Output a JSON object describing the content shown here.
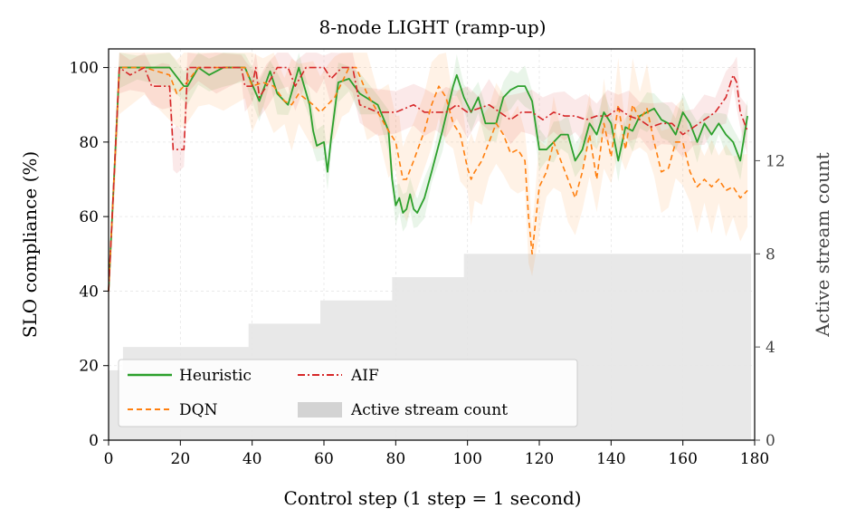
{
  "chart_data": {
    "type": "line",
    "title": "8-node  LIGHT  (ramp-up)",
    "xlabel": "Control step (1 step = 1 second)",
    "ylabel": "SLO compliance (%)",
    "y2label": "Active stream count",
    "xlim": [
      0,
      180
    ],
    "ylim": [
      0,
      105
    ],
    "y2lim": [
      0,
      16.8
    ],
    "xticks": [
      "0",
      "20",
      "40",
      "60",
      "80",
      "100",
      "120",
      "140",
      "160",
      "180"
    ],
    "yticks": [
      "0",
      "20",
      "40",
      "60",
      "80",
      "100"
    ],
    "y2ticks": [
      "0",
      "4",
      "8",
      "12"
    ],
    "grid": true,
    "legend_position": "lower-left",
    "legend": [
      "Heuristic",
      "AIF",
      "DQN",
      "Active stream count"
    ],
    "colors": {
      "heuristic": "#2ca02c",
      "dqn": "#ff7f0e",
      "aif": "#d62728",
      "streams": "#d9d9d9"
    },
    "active_stream_count": {
      "x": [
        0,
        4,
        19,
        39,
        59,
        79,
        99,
        179
      ],
      "values": [
        3,
        4,
        4,
        5,
        6,
        7,
        8,
        8
      ]
    },
    "series": [
      {
        "name": "Heuristic",
        "style": "solid",
        "x": [
          0,
          3,
          8,
          17,
          21,
          22,
          25,
          28,
          32,
          38,
          42,
          45,
          47,
          50,
          53,
          56,
          57,
          58,
          60,
          61,
          62,
          64,
          67,
          70,
          75,
          78,
          79,
          80,
          81,
          82,
          83,
          84,
          85,
          86,
          88,
          90,
          93,
          96,
          97,
          99,
          101,
          103,
          105,
          108,
          110,
          112,
          114,
          116,
          118,
          120,
          122,
          124,
          126,
          128,
          130,
          132,
          134,
          136,
          138,
          140,
          142,
          144,
          146,
          148,
          150,
          152,
          154,
          156,
          158,
          160,
          162,
          164,
          166,
          168,
          170,
          172,
          174,
          176,
          178
        ],
        "values": [
          40,
          100,
          100,
          100,
          95,
          95,
          100,
          98,
          100,
          100,
          91,
          99,
          93,
          90,
          100,
          90,
          83,
          79,
          80,
          72,
          81,
          96,
          97,
          93,
          90,
          83,
          70,
          63,
          65,
          61,
          62,
          66,
          62,
          61,
          65,
          72,
          83,
          95,
          98,
          92,
          88,
          92,
          85,
          85,
          92,
          94,
          95,
          95,
          91,
          78,
          78,
          80,
          82,
          82,
          75,
          78,
          85,
          82,
          88,
          85,
          75,
          84,
          83,
          87,
          88,
          89,
          86,
          85,
          82,
          88,
          85,
          80,
          85,
          82,
          85,
          82,
          80,
          75,
          87
        ]
      },
      {
        "name": "DQN",
        "style": "dashed",
        "x": [
          0,
          3,
          10,
          17,
          19,
          21,
          25,
          28,
          32,
          38,
          40,
          43,
          46,
          49,
          51,
          53,
          57,
          59,
          61,
          63,
          65,
          67,
          69,
          72,
          75,
          78,
          80,
          81,
          82,
          83,
          85,
          88,
          90,
          92,
          94,
          96,
          98,
          100,
          101,
          102,
          104,
          106,
          108,
          110,
          112,
          114,
          116,
          117,
          118,
          120,
          122,
          124,
          126,
          128,
          130,
          132,
          134,
          136,
          138,
          140,
          142,
          144,
          146,
          148,
          150,
          152,
          154,
          156,
          158,
          160,
          162,
          164,
          166,
          168,
          170,
          172,
          174,
          176,
          178
        ],
        "values": [
          40,
          100,
          100,
          98,
          93,
          95,
          100,
          100,
          100,
          100,
          95,
          96,
          95,
          91,
          90,
          93,
          90,
          88,
          90,
          92,
          96,
          100,
          100,
          93,
          88,
          83,
          80,
          75,
          70,
          70,
          75,
          83,
          90,
          95,
          92,
          85,
          82,
          73,
          70,
          72,
          75,
          80,
          85,
          82,
          77,
          78,
          75,
          60,
          50,
          68,
          72,
          80,
          75,
          70,
          65,
          72,
          82,
          70,
          85,
          76,
          90,
          78,
          90,
          86,
          89,
          80,
          72,
          73,
          80,
          80,
          72,
          68,
          70,
          68,
          70,
          67,
          68,
          65,
          67
        ]
      },
      {
        "name": "AIF",
        "style": "dashdot",
        "x": [
          0,
          3,
          6,
          10,
          12,
          15,
          17,
          18,
          19,
          21,
          22,
          25,
          30,
          37,
          38,
          40,
          41,
          42,
          44,
          47,
          50,
          52,
          55,
          58,
          60,
          62,
          65,
          68,
          70,
          75,
          80,
          85,
          88,
          91,
          94,
          97,
          100,
          103,
          106,
          109,
          112,
          115,
          118,
          121,
          124,
          127,
          130,
          133,
          136,
          139,
          142,
          145,
          148,
          151,
          154,
          157,
          160,
          163,
          166,
          169,
          172,
          174,
          175,
          176,
          178
        ],
        "values": [
          40,
          100,
          98,
          100,
          95,
          95,
          95,
          78,
          78,
          78,
          100,
          100,
          100,
          100,
          95,
          95,
          100,
          92,
          95,
          100,
          100,
          95,
          100,
          100,
          100,
          97,
          100,
          100,
          90,
          88,
          88,
          90,
          88,
          88,
          88,
          90,
          88,
          89,
          90,
          88,
          86,
          88,
          88,
          86,
          88,
          87,
          87,
          86,
          87,
          87,
          89,
          87,
          86,
          84,
          85,
          85,
          82,
          84,
          86,
          88,
          92,
          98,
          96,
          88,
          83
        ]
      }
    ]
  }
}
